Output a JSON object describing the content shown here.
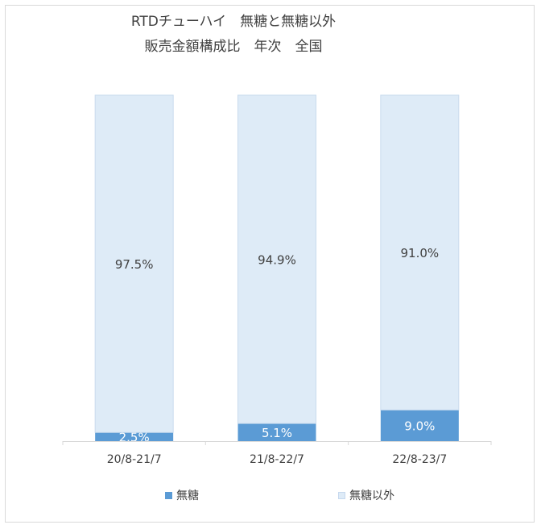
{
  "chart_data": {
    "type": "bar",
    "stacked": true,
    "title_lines": [
      "RTDチューハイ　無糖と無糖以外",
      "販売金額構成比　年次　全国"
    ],
    "categories": [
      "20/8-21/7",
      "21/8-22/7",
      "22/8-23/7"
    ],
    "series": [
      {
        "name": "無糖",
        "values": [
          2.5,
          5.1,
          9.0
        ],
        "labels": [
          "2.5%",
          "5.1%",
          "9.0%"
        ],
        "color": "#5b9bd5"
      },
      {
        "name": "無糖以外",
        "values": [
          97.5,
          94.9,
          91.0
        ],
        "labels": [
          "97.5%",
          "94.9%",
          "91.0%"
        ],
        "color": "#deebf7"
      }
    ],
    "ylim": [
      0,
      100
    ],
    "grid": false,
    "legend": "bottom"
  }
}
